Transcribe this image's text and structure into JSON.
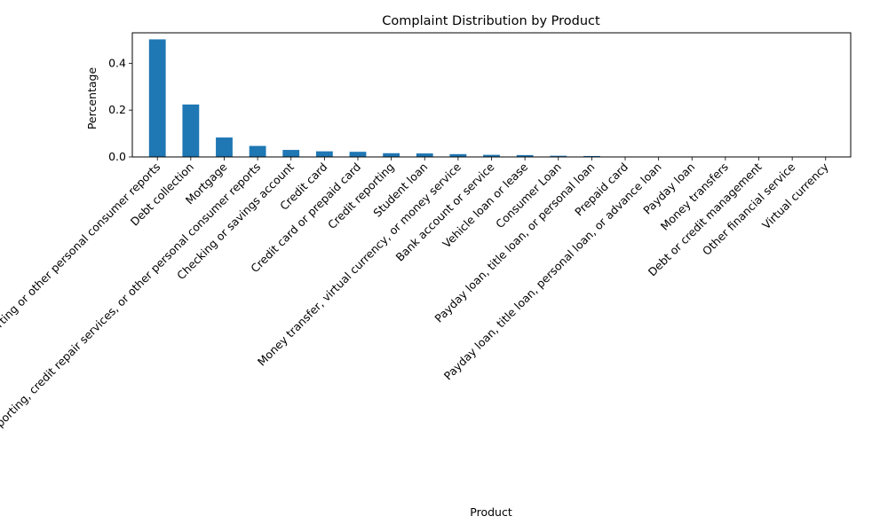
{
  "chart_data": {
    "type": "bar",
    "title": "Complaint Distribution by Product",
    "xlabel": "Product",
    "ylabel": "Percentage",
    "ylim": [
      0,
      0.53
    ],
    "yticks": [
      0.0,
      0.2,
      0.4
    ],
    "ytick_labels": [
      "0.0",
      "0.2",
      "0.4"
    ],
    "grid": false,
    "legend": "none",
    "bar_color": "#1f77b4",
    "categories": [
      "Credit reporting or other personal consumer reports",
      "Debt collection",
      "Mortgage",
      "Credit reporting, credit repair services, or other personal consumer reports",
      "Checking or savings account",
      "Credit card",
      "Credit card or prepaid card",
      "Credit reporting",
      "Student loan",
      "Money transfer, virtual currency, or money service",
      "Bank account or service",
      "Vehicle loan or lease",
      "Consumer Loan",
      "Payday loan, title loan, or personal loan",
      "Prepaid card",
      "Payday loan, title loan, personal loan, or advance loan",
      "Payday loan",
      "Money transfers",
      "Debt or credit management",
      "Other financial service",
      "Virtual currency"
    ],
    "values": [
      0.502,
      0.224,
      0.083,
      0.047,
      0.03,
      0.024,
      0.022,
      0.016,
      0.015,
      0.012,
      0.009,
      0.008,
      0.005,
      0.004,
      0.001,
      0.001,
      0.001,
      0.0005,
      0.0003,
      0.0002,
      0.0001
    ]
  }
}
